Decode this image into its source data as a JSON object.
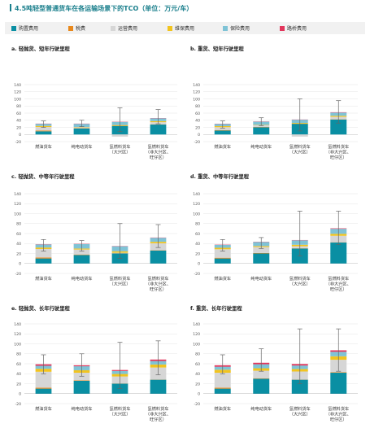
{
  "page_title": "4.5吨轻型普通货车在各运输场景下的TCO（单位：万元/车）",
  "legend": [
    {
      "label": "购置费用",
      "color": "#0a8fa3"
    },
    {
      "label": "税费",
      "color": "#e8881c"
    },
    {
      "label": "运营费用",
      "color": "#d6d6d6"
    },
    {
      "label": "维保费用",
      "color": "#f2c41f"
    },
    {
      "label": "保险费用",
      "color": "#7fc3d6"
    },
    {
      "label": "路桥费用",
      "color": "#e2365c"
    }
  ],
  "chart_data": [
    {
      "type": "bar",
      "stacked": true,
      "title": "a. 轻抛货、短年行驶里程",
      "categories": [
        "燃油货车",
        "纯电动货车",
        "氢燃料货车（大兴区）",
        "氢燃料货车（非大兴区、旺仔区）"
      ],
      "ylim": [
        -20,
        140
      ],
      "yticks": [
        -20,
        0,
        20,
        40,
        60,
        80,
        100,
        120,
        140
      ],
      "grid": true,
      "series": [
        {
          "name": "购置费用",
          "values": [
            9,
            17,
            24,
            28
          ]
        },
        {
          "name": "税费",
          "values": [
            2,
            1,
            0.5,
            0.5
          ]
        },
        {
          "name": "运营费用",
          "values": [
            10,
            2,
            -6,
            6
          ]
        },
        {
          "name": "维保费用",
          "values": [
            3,
            1,
            2,
            3
          ]
        },
        {
          "name": "保险费用",
          "values": [
            6,
            9,
            9,
            8
          ]
        },
        {
          "name": "路桥费用",
          "values": [
            0.5,
            0.5,
            0.5,
            0.5
          ]
        }
      ],
      "errorbars": [
        [
          20,
          38
        ],
        [
          22,
          40
        ],
        [
          8,
          75
        ],
        [
          30,
          70
        ]
      ]
    },
    {
      "type": "bar",
      "stacked": true,
      "title": "b. 重货、短年行驶里程",
      "categories": [
        "燃油货车",
        "纯电动货车",
        "氢燃料货车（大兴区）",
        "氢燃料货车（非大兴区、旺仔区）"
      ],
      "ylim": [
        -20,
        140
      ],
      "yticks": [
        -20,
        0,
        20,
        40,
        60,
        80,
        100,
        120,
        140
      ],
      "grid": true,
      "series": [
        {
          "name": "购置费用",
          "values": [
            11,
            20,
            30,
            42
          ]
        },
        {
          "name": "税费",
          "values": [
            1.5,
            1,
            0.5,
            0.5
          ]
        },
        {
          "name": "运营费用",
          "values": [
            8,
            5,
            -6,
            7
          ]
        },
        {
          "name": "维保费用",
          "values": [
            3,
            1,
            2,
            3
          ]
        },
        {
          "name": "保险费用",
          "values": [
            6,
            9,
            9,
            9
          ]
        },
        {
          "name": "路桥费用",
          "values": [
            0.5,
            0.5,
            0.5,
            1
          ]
        }
      ],
      "errorbars": [
        [
          18,
          38
        ],
        [
          25,
          47
        ],
        [
          10,
          100
        ],
        [
          32,
          95
        ]
      ]
    },
    {
      "type": "bar",
      "stacked": true,
      "title": "c. 轻抛货、中等年行驶里程",
      "categories": [
        "燃油货车",
        "纯电动货车",
        "氢燃料货车（大兴区）",
        "氢燃料货车（非大兴区、旺仔区）"
      ],
      "ylim": [
        -20,
        140
      ],
      "yticks": [
        -20,
        0,
        20,
        40,
        60,
        80,
        100,
        120,
        140
      ],
      "grid": true,
      "series": [
        {
          "name": "购置费用",
          "values": [
            10,
            17,
            20,
            26
          ]
        },
        {
          "name": "税费",
          "values": [
            2,
            1,
            0.5,
            0.5
          ]
        },
        {
          "name": "运营费用",
          "values": [
            17,
            10,
            1,
            14
          ]
        },
        {
          "name": "维保费用",
          "values": [
            3,
            2,
            3,
            3
          ]
        },
        {
          "name": "保险费用",
          "values": [
            6,
            9,
            10,
            8
          ]
        },
        {
          "name": "路桥费用",
          "values": [
            0.5,
            0.5,
            0.5,
            0.5
          ]
        }
      ],
      "errorbars": [
        [
          25,
          48
        ],
        [
          25,
          46
        ],
        [
          10,
          80
        ],
        [
          32,
          78
        ]
      ]
    },
    {
      "type": "bar",
      "stacked": true,
      "title": "d. 重货、中等年行驶里程",
      "categories": [
        "燃油货车",
        "纯电动货车",
        "氢燃料货车（大兴区）",
        "氢燃料货车（非大兴区、旺仔区）"
      ],
      "ylim": [
        -20,
        140
      ],
      "yticks": [
        -20,
        0,
        20,
        40,
        60,
        80,
        100,
        120,
        140
      ],
      "grid": true,
      "series": [
        {
          "name": "购置费用",
          "values": [
            10,
            20,
            30,
            42
          ]
        },
        {
          "name": "税费",
          "values": [
            1.5,
            1,
            0.5,
            0.5
          ]
        },
        {
          "name": "运营费用",
          "values": [
            17,
            12,
            4,
            13
          ]
        },
        {
          "name": "维保费用",
          "values": [
            3,
            2,
            3,
            4
          ]
        },
        {
          "name": "保险费用",
          "values": [
            6,
            8,
            9,
            10
          ]
        },
        {
          "name": "路桥费用",
          "values": [
            0.5,
            0.5,
            0.5,
            1
          ]
        }
      ],
      "errorbars": [
        [
          25,
          48
        ],
        [
          30,
          52
        ],
        [
          15,
          105
        ],
        [
          38,
          105
        ]
      ]
    },
    {
      "type": "bar",
      "stacked": true,
      "title": "e. 轻抛货、长年行驶里程",
      "categories": [
        "燃油货车",
        "纯电动货车",
        "氢燃料货车（大兴区）",
        "氢燃料货车（非大兴区、旺仔区）"
      ],
      "ylim": [
        -20,
        140
      ],
      "yticks": [
        -20,
        0,
        20,
        40,
        60,
        80,
        100,
        120,
        140
      ],
      "grid": true,
      "series": [
        {
          "name": "购置费用",
          "values": [
            10,
            26,
            20,
            28
          ]
        },
        {
          "name": "税费",
          "values": [
            2,
            1,
            0.5,
            0.5
          ]
        },
        {
          "name": "运营费用",
          "values": [
            32,
            15,
            14,
            24
          ]
        },
        {
          "name": "维保费用",
          "values": [
            6,
            5,
            5,
            6
          ]
        },
        {
          "name": "保险费用",
          "values": [
            6,
            8,
            6,
            7
          ]
        },
        {
          "name": "路桥费用",
          "values": [
            3,
            2,
            2,
            3
          ]
        }
      ],
      "errorbars": [
        [
          40,
          78
        ],
        [
          35,
          80
        ],
        [
          10,
          103
        ],
        [
          38,
          106
        ]
      ]
    },
    {
      "type": "bar",
      "stacked": true,
      "title": "f. 重货、长年行驶里程",
      "categories": [
        "燃油货车",
        "纯电动货车",
        "氢燃料货车（大兴区）",
        "氢燃料货车（非大兴区、旺仔区）"
      ],
      "ylim": [
        -20,
        140
      ],
      "yticks": [
        -20,
        0,
        20,
        40,
        60,
        80,
        100,
        120,
        140
      ],
      "grid": true,
      "series": [
        {
          "name": "购置费用",
          "values": [
            10,
            30,
            28,
            42
          ]
        },
        {
          "name": "税费",
          "values": [
            2,
            1,
            0.5,
            1
          ]
        },
        {
          "name": "运营费用",
          "values": [
            30,
            15,
            16,
            25
          ]
        },
        {
          "name": "维保费用",
          "values": [
            6,
            5,
            5,
            7
          ]
        },
        {
          "name": "保险费用",
          "values": [
            6,
            8,
            7,
            9
          ]
        },
        {
          "name": "路桥费用",
          "values": [
            3,
            3,
            3,
            3
          ]
        }
      ],
      "errorbars": [
        [
          40,
          78
        ],
        [
          45,
          90
        ],
        [
          20,
          130
        ],
        [
          45,
          130
        ]
      ]
    }
  ]
}
